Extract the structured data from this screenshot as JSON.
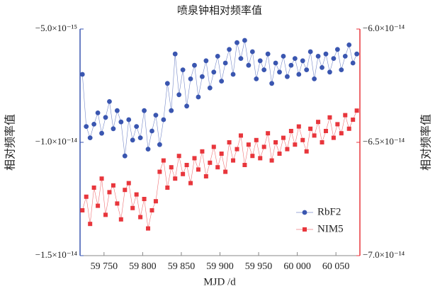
{
  "chart_data": {
    "type": "line",
    "title": "喷泉钟相对频率值",
    "xlabel": "MJD /d",
    "ylabel": "相对频率值",
    "y2label": "相对频率值",
    "x": [
      59722,
      59727,
      59732,
      59737,
      59742,
      59747,
      59752,
      59757,
      59762,
      59767,
      59772,
      59777,
      59782,
      59787,
      59792,
      59797,
      59802,
      59807,
      59812,
      59817,
      59822,
      59827,
      59832,
      59837,
      59842,
      59847,
      59852,
      59857,
      59862,
      59867,
      59872,
      59877,
      59882,
      59887,
      59892,
      59897,
      59902,
      59907,
      59912,
      59917,
      59922,
      59927,
      59932,
      59937,
      59942,
      59947,
      59952,
      59957,
      59962,
      59967,
      59972,
      59977,
      59982,
      59987,
      59992,
      59997,
      60002,
      60007,
      60012,
      60017,
      60022,
      60027,
      60032,
      60037,
      60042,
      60047,
      60052,
      60057,
      60062,
      60067,
      60072,
      60077
    ],
    "series": [
      {
        "name": "RbF2",
        "color": "#3a56b0",
        "marker": "circle",
        "values": [
          -7e-15,
          -9.3e-15,
          -9.8e-15,
          -9.2e-15,
          -8.7e-15,
          -9.6e-15,
          -8.9e-15,
          -8.2e-15,
          -9.4e-15,
          -8.6e-15,
          -9.1e-15,
          -1.06e-14,
          -9e-15,
          -9.9e-15,
          -9.3e-15,
          -9.8e-15,
          -8.6e-15,
          -1.03e-14,
          -9.5e-15,
          -8.8e-15,
          -1.01e-14,
          -9e-15,
          -7.4e-15,
          -8.6e-15,
          -6.1e-15,
          -7.9e-15,
          -6.8e-15,
          -8.4e-15,
          -7.2e-15,
          -6.6e-15,
          -8e-15,
          -7.1e-15,
          -6.4e-15,
          -7.6e-15,
          -6.9e-15,
          -6.2e-15,
          -7.3e-15,
          -6.5e-15,
          -5.9e-15,
          -7e-15,
          -5.6e-15,
          -6.3e-15,
          -5.5e-15,
          -6.6e-15,
          -6e-15,
          -7.2e-15,
          -6.4e-15,
          -6.8e-15,
          -6.1e-15,
          -7.4e-15,
          -6.5e-15,
          -6.9e-15,
          -6.2e-15,
          -7.1e-15,
          -6.6e-15,
          -6.3e-15,
          -7e-15,
          -6.4e-15,
          -6.8e-15,
          -6e-15,
          -7.2e-15,
          -6.2e-15,
          -6.7e-15,
          -6.1e-15,
          -6.9e-15,
          -6.3e-15,
          -5.9e-15,
          -6.8e-15,
          -6.2e-15,
          -5.7e-15,
          -6.5e-15,
          -6.1e-15
        ]
      },
      {
        "name": "NIM5",
        "color": "#e8363c",
        "marker": "square",
        "axis": "y2",
        "values": [
          -6.8e-14,
          -6.74e-14,
          -6.86e-14,
          -6.7e-14,
          -6.78e-14,
          -6.66e-14,
          -6.82e-14,
          -6.72e-14,
          -6.69e-14,
          -6.77e-14,
          -6.84e-14,
          -6.71e-14,
          -6.68e-14,
          -6.79e-14,
          -6.73e-14,
          -6.83e-14,
          -6.75e-14,
          -6.88e-14,
          -6.8e-14,
          -6.76e-14,
          -6.63e-14,
          -6.58e-14,
          -6.7e-14,
          -6.61e-14,
          -6.66e-14,
          -6.56e-14,
          -6.64e-14,
          -6.6e-14,
          -6.68e-14,
          -6.57e-14,
          -6.62e-14,
          -6.54e-14,
          -6.65e-14,
          -6.59e-14,
          -6.52e-14,
          -6.61e-14,
          -6.55e-14,
          -6.63e-14,
          -6.5e-14,
          -6.58e-14,
          -6.53e-14,
          -6.47e-14,
          -6.6e-14,
          -6.51e-14,
          -6.56e-14,
          -6.49e-14,
          -6.57e-14,
          -6.52e-14,
          -6.46e-14,
          -6.58e-14,
          -6.5e-14,
          -6.55e-14,
          -6.48e-14,
          -6.53e-14,
          -6.45e-14,
          -6.51e-14,
          -6.43e-14,
          -6.49e-14,
          -6.54e-14,
          -6.44e-14,
          -6.47e-14,
          -6.41e-14,
          -6.5e-14,
          -6.45e-14,
          -6.39e-14,
          -6.48e-14,
          -6.42e-14,
          -6.46e-14,
          -6.38e-14,
          -6.44e-14,
          -6.4e-14,
          -6.36e-14
        ]
      }
    ],
    "xlim": [
      59719,
      60081
    ],
    "xticks": [
      {
        "value": 59750,
        "label": "59 750"
      },
      {
        "value": 59800,
        "label": "59 800"
      },
      {
        "value": 59850,
        "label": "59 850"
      },
      {
        "value": 59900,
        "label": "59 900"
      },
      {
        "value": 59950,
        "label": "59 950"
      },
      {
        "value": 60000,
        "label": "60 000"
      },
      {
        "value": 60050,
        "label": "60 050"
      }
    ],
    "ylim": [
      -1.5e-14,
      -5e-15
    ],
    "yticks": [
      {
        "value": -1.5e-14,
        "label": "−1.5×10⁻¹⁴"
      },
      {
        "value": -1e-14,
        "label": "−1.0×10⁻¹⁴"
      },
      {
        "value": -5e-15,
        "label": "−5.0×10⁻¹⁵"
      }
    ],
    "y2lim": [
      -7e-14,
      -6e-14
    ],
    "y2ticks": [
      {
        "value": -7e-14,
        "label": "−7.0×10⁻¹⁴"
      },
      {
        "value": -6.5e-14,
        "label": "−6.5×10⁻¹⁴"
      },
      {
        "value": -6e-14,
        "label": "−6.0×10⁻¹⁴"
      }
    ],
    "ycolor": "#3a56b0",
    "y2color": "#e8363c",
    "legend": "lower right",
    "grid": false
  }
}
